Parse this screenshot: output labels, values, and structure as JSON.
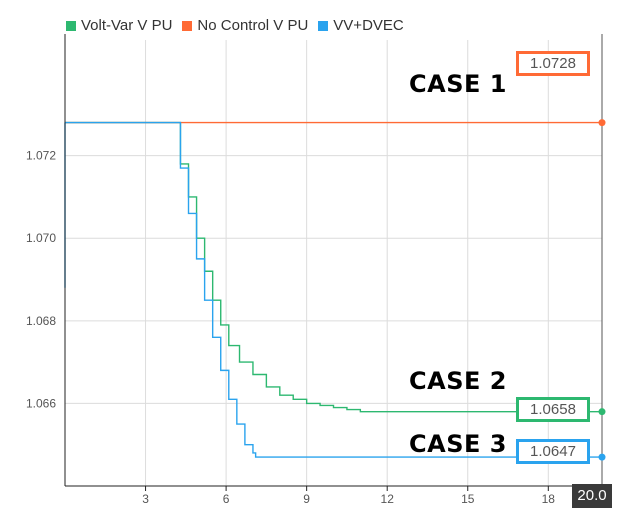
{
  "colors": {
    "volt_var": "#2db870",
    "no_control": "#ff6a35",
    "vv_dvec": "#2aa3ee",
    "grid": "#dcdcdc",
    "axis": "#222222",
    "tick_text": "#555555"
  },
  "annotations": {
    "case1": "CASE 1",
    "case2": "CASE 2",
    "case3": "CASE 3"
  },
  "value_readouts": {
    "no_control": "1.0728",
    "volt_var": "1.0658",
    "vv_dvec": "1.0647"
  },
  "x_cursor": "20.0",
  "chart_data": {
    "type": "line",
    "title": "",
    "xlabel": "",
    "ylabel": "",
    "xlim": [
      0,
      20
    ],
    "ylim": [
      1.064,
      1.0748
    ],
    "x_ticks": [
      3,
      6,
      9,
      12,
      15,
      18
    ],
    "x_tick_labels": [
      "3",
      "6",
      "9",
      "12",
      "15",
      "18"
    ],
    "y_ticks": [
      1.066,
      1.068,
      1.07,
      1.072
    ],
    "y_tick_labels": [
      "1.066",
      "1.068",
      "1.070",
      "1.072"
    ],
    "grid": true,
    "legend_position": "top-left",
    "series": [
      {
        "name": "Volt-Var V PU",
        "color": "#2db870",
        "x": [
          0,
          4.0,
          4.3,
          4.6,
          4.9,
          5.2,
          5.5,
          5.8,
          6.1,
          6.5,
          7.0,
          7.5,
          8.0,
          8.5,
          9.0,
          9.5,
          10.0,
          10.5,
          11.0,
          12.0,
          14.0,
          17.0,
          20.0
        ],
        "values": [
          1.0728,
          1.0728,
          1.0718,
          1.071,
          1.07,
          1.0692,
          1.0685,
          1.0679,
          1.0674,
          1.067,
          1.0667,
          1.0664,
          1.0662,
          1.0661,
          1.066,
          1.06595,
          1.0659,
          1.06585,
          1.0658,
          1.0658,
          1.0658,
          1.0658,
          1.0658
        ]
      },
      {
        "name": "No Control V PU",
        "color": "#ff6a35",
        "x": [
          0,
          20.0
        ],
        "values": [
          1.0728,
          1.0728
        ]
      },
      {
        "name": "VV+DVEC",
        "color": "#2aa3ee",
        "x": [
          0,
          4.0,
          4.3,
          4.6,
          4.9,
          5.2,
          5.5,
          5.8,
          6.1,
          6.4,
          6.7,
          7.0,
          7.1,
          8.0,
          10.0,
          14.0,
          20.0
        ],
        "values": [
          1.0728,
          1.0728,
          1.0717,
          1.0706,
          1.0695,
          1.0685,
          1.0676,
          1.0668,
          1.0661,
          1.0655,
          1.065,
          1.0648,
          1.0647,
          1.0647,
          1.0647,
          1.0647,
          1.0647
        ]
      }
    ]
  }
}
